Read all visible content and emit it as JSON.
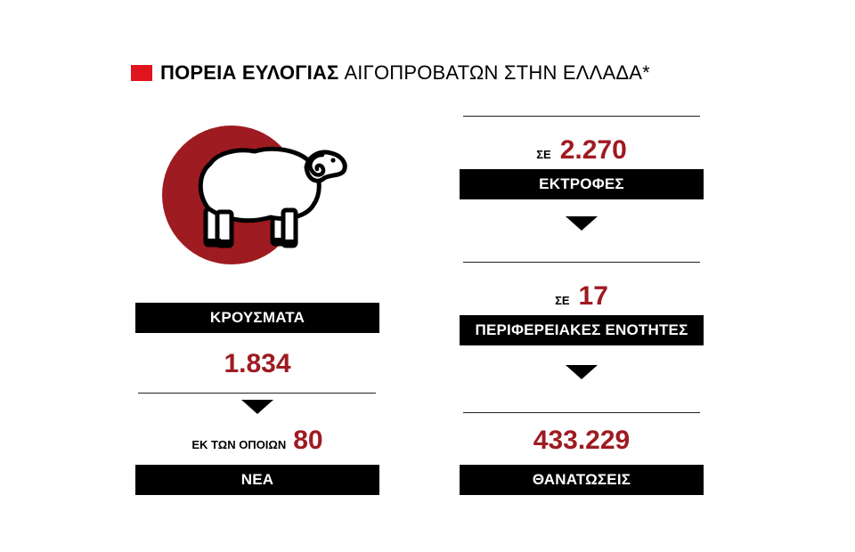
{
  "header": {
    "title_bold": "ΠΟΡΕΙΑ ΕΥΛΟΓΙΑΣ",
    "title_regular": "ΑΙΓΟΠΡΟΒΑΤΩΝ ΣΤΗΝ ΕΛΛΑΔΑ*",
    "accent_color": "#e0141e"
  },
  "illustration": {
    "icon": "sheep-icon",
    "circle_color": "#9e1b21"
  },
  "left": {
    "cases_label": "ΚΡΟΥΣΜΑΤΑ",
    "cases_value": "1.834",
    "of_which_label": "ΕΚ ΤΩΝ ΟΠΟΙΩΝ",
    "new_value": "80",
    "new_label": "ΝΕΑ"
  },
  "right": {
    "farms_prefix": "ΣΕ",
    "farms_value": "2.270",
    "farms_label": "ΕΚΤΡΟΦΕΣ",
    "units_prefix": "ΣΕ",
    "units_value": "17",
    "units_label": "ΠΕΡΙΦΕΡΕΙΑΚΕΣ ΕΝΟΤΗΤΕΣ",
    "culls_value": "433.229",
    "culls_label": "ΘΑΝΑΤΩΣΕΙΣ"
  },
  "colors": {
    "number": "#9e1b21",
    "bar": "#000000"
  }
}
